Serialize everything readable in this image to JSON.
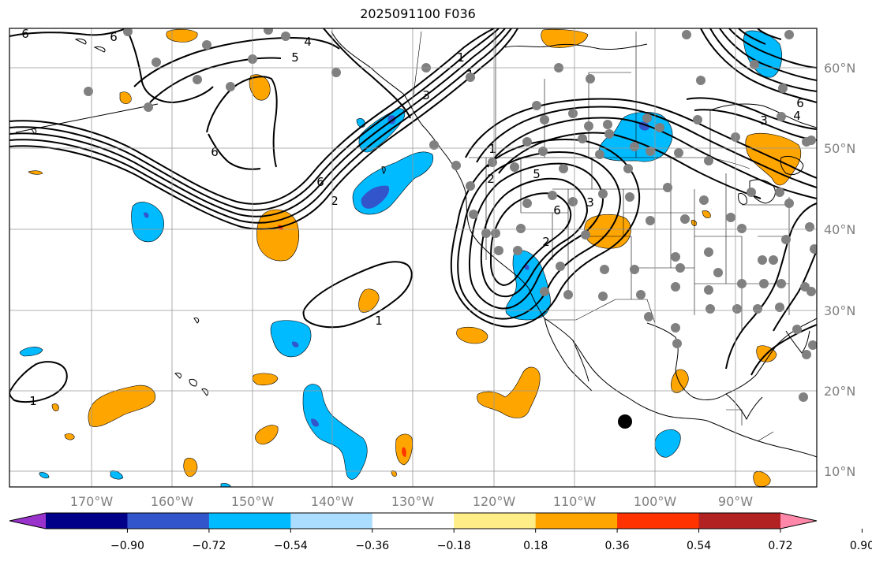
{
  "title": "2025091100 F036",
  "lon_ticks": [
    "170°W",
    "160°W",
    "150°W",
    "140°W",
    "130°W",
    "120°W",
    "110°W",
    "100°W",
    "90°W"
  ],
  "lat_ticks": [
    "60°N",
    "50°N",
    "40°N",
    "30°N",
    "20°N",
    "10°N"
  ],
  "colorbar": {
    "colors": [
      "#9933cc",
      "#000088",
      "#3355cc",
      "#00bbff",
      "#aaddff",
      "#ffffff",
      "#ffee88",
      "#ffa500",
      "#ff3300",
      "#b22222",
      "#ff88aa"
    ],
    "labels": [
      "−0.90",
      "−0.72",
      "−0.54",
      "−0.36",
      "−0.18",
      "0.18",
      "0.36",
      "0.54",
      "0.72",
      "0.90"
    ]
  },
  "contour_labels": [
    "6",
    "6",
    "5",
    "4",
    "6",
    "2",
    "6",
    "1",
    "1",
    "3",
    "2",
    "1",
    "6",
    "5",
    "2",
    "1",
    "3",
    "6",
    "4",
    "3",
    "1"
  ],
  "icons": {
    "stations": "grey-circle-marker",
    "point": "black-circle-marker"
  }
}
